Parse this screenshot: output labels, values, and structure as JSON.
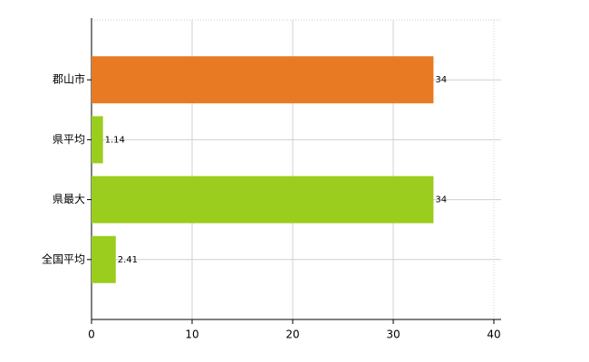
{
  "chart_data": {
    "type": "bar",
    "orientation": "horizontal",
    "categories": [
      "郡山市",
      "県平均",
      "県最大",
      "全国平均"
    ],
    "values": [
      34,
      1.14,
      34,
      2.41
    ],
    "colors": [
      "#e87a24",
      "#9acd1e",
      "#9acd1e",
      "#9acd1e"
    ],
    "xlim": [
      0,
      40
    ],
    "xticks": [
      0,
      10,
      20,
      30,
      40
    ],
    "grid": true
  }
}
